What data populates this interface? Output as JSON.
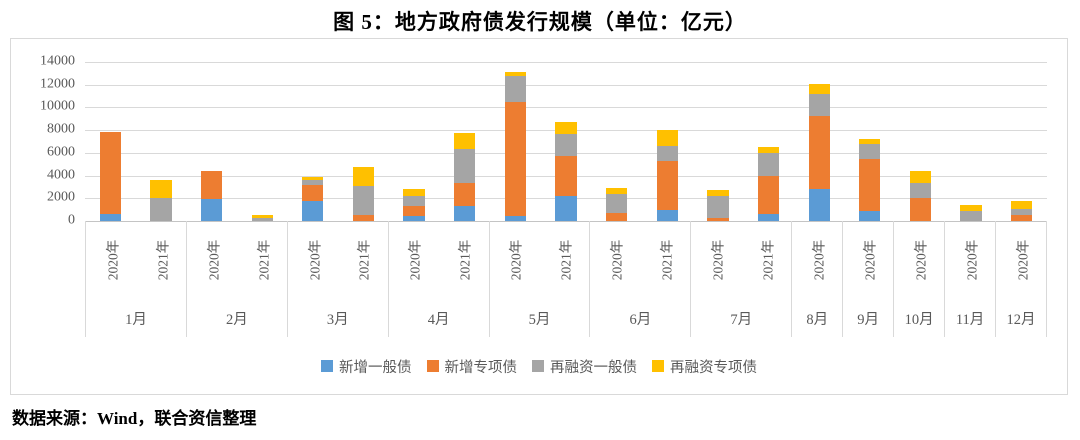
{
  "title": "图 5：地方政府债发行规模（单位：亿元）",
  "source_note": "数据来源：Wind，联合资信整理",
  "colors": {
    "grid": "#D9D9D9",
    "axis_text": "#595959",
    "frame_border": "#D9D9D9"
  },
  "chart_data": {
    "type": "bar",
    "stacked": true,
    "title": "图 5：地方政府债发行规模（单位：亿元）",
    "unit": "亿元",
    "grid": true,
    "legend_position": "bottom",
    "y_axis": {
      "min": 0,
      "max": 14000,
      "step": 2000,
      "ticks_top_to_bottom": [
        "14000",
        "12000",
        "10000",
        "8000",
        "6000",
        "4000",
        "2000",
        "0"
      ]
    },
    "bars": [
      {
        "month": "1月",
        "year": "2020年"
      },
      {
        "month": "1月",
        "year": "2021年"
      },
      {
        "month": "2月",
        "year": "2020年"
      },
      {
        "month": "2月",
        "year": "2021年"
      },
      {
        "month": "3月",
        "year": "2020年"
      },
      {
        "month": "3月",
        "year": "2021年"
      },
      {
        "month": "4月",
        "year": "2020年"
      },
      {
        "month": "4月",
        "year": "2021年"
      },
      {
        "month": "5月",
        "year": "2020年"
      },
      {
        "month": "5月",
        "year": "2021年"
      },
      {
        "month": "6月",
        "year": "2020年"
      },
      {
        "month": "6月",
        "year": "2021年"
      },
      {
        "month": "7月",
        "year": "2020年"
      },
      {
        "month": "7月",
        "year": "2021年"
      },
      {
        "month": "8月",
        "year": "2020年"
      },
      {
        "month": "9月",
        "year": "2020年"
      },
      {
        "month": "10月",
        "year": "2020年"
      },
      {
        "month": "11月",
        "year": "2020年"
      },
      {
        "month": "12月",
        "year": "2020年"
      }
    ],
    "month_groups": [
      {
        "label": "1月",
        "span": 2
      },
      {
        "label": "2月",
        "span": 2
      },
      {
        "label": "3月",
        "span": 2
      },
      {
        "label": "4月",
        "span": 2
      },
      {
        "label": "5月",
        "span": 2
      },
      {
        "label": "6月",
        "span": 2
      },
      {
        "label": "7月",
        "span": 2
      },
      {
        "label": "8月",
        "span": 1
      },
      {
        "label": "9月",
        "span": 1
      },
      {
        "label": "10月",
        "span": 1
      },
      {
        "label": "11月",
        "span": 1
      },
      {
        "label": "12月",
        "span": 1
      }
    ],
    "series": [
      {
        "name": "新增一般债",
        "color": "#5B9BD5",
        "values": [
          600,
          0,
          1950,
          0,
          1800,
          0,
          400,
          1300,
          400,
          2200,
          0,
          950,
          0,
          650,
          2800,
          900,
          0,
          0,
          0
        ]
      },
      {
        "name": "新增专项债",
        "color": "#ED7D31",
        "values": [
          7250,
          0,
          2450,
          0,
          1400,
          500,
          900,
          2050,
          10100,
          3500,
          700,
          4350,
          250,
          3350,
          6450,
          4600,
          2000,
          0,
          550
        ]
      },
      {
        "name": "再融资一般债",
        "color": "#A5A5A5",
        "values": [
          0,
          2050,
          0,
          250,
          450,
          2600,
          900,
          3000,
          2300,
          1950,
          1700,
          1350,
          1950,
          2000,
          1950,
          1250,
          1350,
          850,
          550
        ]
      },
      {
        "name": "再融资专项债",
        "color": "#FFC000",
        "values": [
          0,
          1550,
          0,
          300,
          200,
          1700,
          650,
          1400,
          350,
          1100,
          550,
          1350,
          500,
          550,
          900,
          450,
          1050,
          600,
          700
        ]
      }
    ]
  }
}
